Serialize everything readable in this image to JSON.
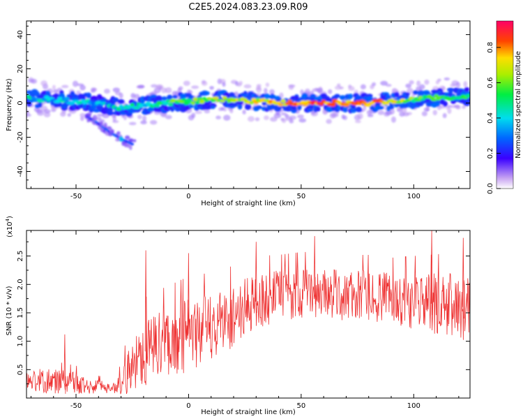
{
  "title": "C2E5.2024.083.23.09.R09",
  "chart_data": [
    {
      "type": "heatmap",
      "xlabel": "Height of straight line (km)",
      "ylabel": "Frequency (Hz)",
      "xlim": [
        -72,
        125
      ],
      "ylim": [
        -50,
        48
      ],
      "xticks": [
        "-50",
        "0",
        "50",
        "100"
      ],
      "xtick_values": [
        -50,
        0,
        50,
        100
      ],
      "yticks": [
        "40",
        "20",
        "0",
        "-20",
        "-40"
      ],
      "ytick_values": [
        40,
        20,
        0,
        -20,
        -40
      ],
      "colorbar": {
        "label": "Normalized spectral amplitude",
        "range": [
          0.0,
          0.95
        ],
        "ticks": [
          "0.0",
          "0.2",
          "0.4",
          "0.6",
          "0.8"
        ],
        "tick_values": [
          0.0,
          0.2,
          0.4,
          0.6,
          0.8
        ]
      },
      "ridge": {
        "x": [
          -72,
          -60,
          -50,
          -40,
          -30,
          -20,
          -10,
          0,
          10,
          20,
          30,
          40,
          50,
          60,
          70,
          80,
          90,
          100,
          110,
          125
        ],
        "freq": [
          3,
          2,
          1,
          0,
          -3,
          -1,
          0,
          1,
          2,
          2,
          1,
          0,
          0,
          0,
          0,
          0,
          1,
          2,
          3,
          4
        ],
        "amplitude": [
          0.45,
          0.4,
          0.4,
          0.35,
          0.45,
          0.45,
          0.55,
          0.6,
          0.65,
          0.7,
          0.75,
          0.8,
          0.85,
          0.88,
          0.85,
          0.85,
          0.75,
          0.6,
          0.55,
          0.5
        ]
      },
      "secondary_trace": {
        "x": [
          -45,
          -40,
          -35,
          -30,
          -25
        ],
        "freq": [
          -8,
          -12,
          -17,
          -21,
          -24
        ]
      }
    },
    {
      "type": "line",
      "xlabel": "Height of straight line (km)",
      "ylabel": "SNR (10 * v/v)",
      "yscale_label": "(x10",
      "yscale_exponent": "4",
      "yscale_suffix": ")",
      "xlim": [
        -72,
        125
      ],
      "ylim": [
        0,
        2.95
      ],
      "xticks": [
        "-50",
        "0",
        "50",
        "100"
      ],
      "xtick_values": [
        -50,
        0,
        50,
        100
      ],
      "yticks": [
        "0.5",
        "1.0",
        "1.5",
        "2.0",
        "2.5"
      ],
      "ytick_values": [
        0.5,
        1.0,
        1.5,
        2.0,
        2.5
      ],
      "color": "#ee3030",
      "envelope": {
        "x": [
          -72,
          -60,
          -50,
          -40,
          -32,
          -28,
          -20,
          -10,
          0,
          10,
          20,
          30,
          40,
          50,
          60,
          70,
          80,
          90,
          100,
          110,
          120,
          125
        ],
        "mean": [
          0.3,
          0.3,
          0.25,
          0.2,
          0.18,
          0.4,
          0.8,
          1.0,
          1.1,
          1.25,
          1.45,
          1.7,
          1.8,
          1.85,
          1.85,
          1.8,
          1.8,
          1.75,
          1.7,
          1.65,
          1.6,
          1.6
        ],
        "spread": [
          0.2,
          0.22,
          0.2,
          0.12,
          0.1,
          0.35,
          0.6,
          0.6,
          0.65,
          0.6,
          0.55,
          0.5,
          0.45,
          0.45,
          0.45,
          0.45,
          0.45,
          0.45,
          0.5,
          0.55,
          0.6,
          0.6
        ]
      },
      "peaks": [
        {
          "x": -55,
          "y": 1.12
        },
        {
          "x": -19,
          "y": 2.6
        },
        {
          "x": 0,
          "y": 2.55
        },
        {
          "x": 30,
          "y": 2.75
        },
        {
          "x": 56,
          "y": 2.85
        },
        {
          "x": 108,
          "y": 2.95
        },
        {
          "x": 122,
          "y": 2.82
        }
      ]
    }
  ]
}
